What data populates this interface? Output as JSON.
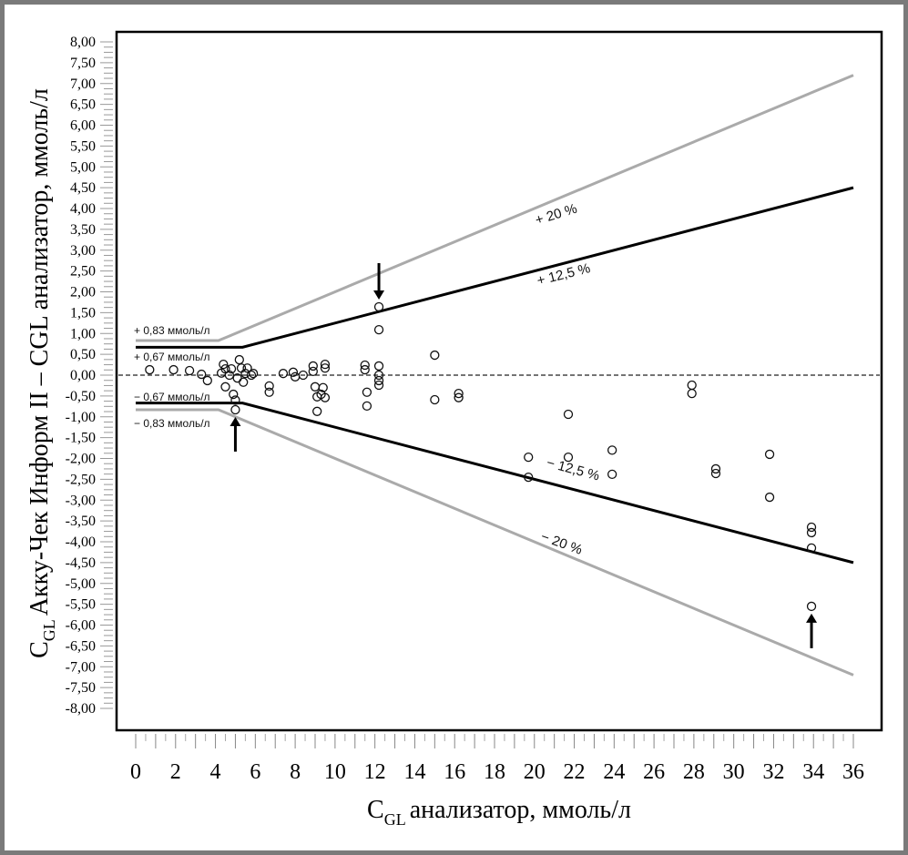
{
  "chart_data": {
    "type": "scatter",
    "title": "",
    "xlabel": "анализатор, ммоль/л",
    "xlabel_prefix": "C",
    "xlabel_sub": "GL",
    "ylabel": "Акку-Чек Информ II – CGL анализатор, ммоль/л",
    "ylabel_prefix": "C",
    "ylabel_sub": "GL",
    "xlim": [
      0,
      36
    ],
    "ylim": [
      -8,
      8
    ],
    "x_ticks": [
      "0",
      "2",
      "4",
      "6",
      "8",
      "10",
      "12",
      "14",
      "16",
      "18",
      "20",
      "22",
      "24",
      "26",
      "28",
      "30",
      "32",
      "34",
      "36"
    ],
    "y_ticks": [
      "8,00",
      "7,50",
      "7,00",
      "6,50",
      "6,00",
      "5,50",
      "5,00",
      "4,50",
      "4,00",
      "3,50",
      "3,00",
      "2,50",
      "2,00",
      "1,50",
      "1,00",
      "0,50",
      "0,00",
      "-0,50",
      "-1,00",
      "-1,50",
      "-2,00",
      "-2,50",
      "-3,00",
      "-3,50",
      "-4,00",
      "-4,50",
      "-5,00",
      "-5,50",
      "-6,00",
      "-6,50",
      "-7,00",
      "-7,50",
      "-8,00"
    ],
    "reference_line": {
      "y": 0,
      "style": "dashed"
    },
    "limits": [
      {
        "name": "+12,5 %",
        "abs": 0.67,
        "pct": 12.5,
        "sign": 1,
        "color": "#000000",
        "abs_label": "+ 0,67 ммоль/л",
        "pct_label": "+ 12,5 %"
      },
      {
        "name": "-12,5 %",
        "abs": 0.67,
        "pct": 12.5,
        "sign": -1,
        "color": "#000000",
        "abs_label": "− 0,67 ммоль/л",
        "pct_label": "− 12,5 %"
      },
      {
        "name": "+20 %",
        "abs": 0.83,
        "pct": 20,
        "sign": 1,
        "color": "#aaaaaa",
        "abs_label": "+ 0,83 ммоль/л",
        "pct_label": "+ 20 %"
      },
      {
        "name": "-20 %",
        "abs": 0.83,
        "pct": 20,
        "sign": -1,
        "color": "#aaaaaa",
        "abs_label": "− 0,83 ммоль/л",
        "pct_label": "− 20 %"
      }
    ],
    "points": [
      [
        0.7,
        0.13
      ],
      [
        1.9,
        0.13
      ],
      [
        2.7,
        0.11
      ],
      [
        3.3,
        0.02
      ],
      [
        3.6,
        -0.13
      ],
      [
        4.3,
        0.05
      ],
      [
        4.4,
        0.26
      ],
      [
        4.5,
        0.15
      ],
      [
        4.5,
        -0.28
      ],
      [
        4.7,
        0.0
      ],
      [
        4.8,
        0.15
      ],
      [
        4.9,
        -0.46
      ],
      [
        5.0,
        -0.6
      ],
      [
        5.0,
        -0.83
      ],
      [
        5.1,
        -0.07
      ],
      [
        5.2,
        0.37
      ],
      [
        5.3,
        0.17
      ],
      [
        5.4,
        -0.17
      ],
      [
        5.5,
        0.04
      ],
      [
        5.6,
        0.17
      ],
      [
        5.8,
        0.0
      ],
      [
        5.9,
        0.04
      ],
      [
        6.7,
        -0.26
      ],
      [
        6.7,
        -0.41
      ],
      [
        7.4,
        0.04
      ],
      [
        7.9,
        0.07
      ],
      [
        8.0,
        -0.04
      ],
      [
        8.4,
        0.0
      ],
      [
        8.9,
        0.22
      ],
      [
        8.9,
        0.09
      ],
      [
        9.0,
        -0.28
      ],
      [
        9.1,
        -0.52
      ],
      [
        9.1,
        -0.87
      ],
      [
        9.3,
        -0.46
      ],
      [
        9.4,
        -0.3
      ],
      [
        9.5,
        0.26
      ],
      [
        9.5,
        0.17
      ],
      [
        9.5,
        -0.54
      ],
      [
        11.5,
        0.24
      ],
      [
        11.5,
        0.13
      ],
      [
        11.6,
        -0.41
      ],
      [
        11.6,
        -0.74
      ],
      [
        12.2,
        1.64
      ],
      [
        12.2,
        1.09
      ],
      [
        12.2,
        0.22
      ],
      [
        12.2,
        0.0
      ],
      [
        12.2,
        -0.13
      ],
      [
        12.2,
        -0.24
      ],
      [
        15.0,
        0.48
      ],
      [
        15.0,
        -0.59
      ],
      [
        16.2,
        -0.44
      ],
      [
        16.2,
        -0.54
      ],
      [
        19.7,
        -1.97
      ],
      [
        19.7,
        -2.45
      ],
      [
        21.7,
        -0.94
      ],
      [
        21.7,
        -1.97
      ],
      [
        23.9,
        -1.8
      ],
      [
        23.9,
        -2.38
      ],
      [
        27.9,
        -0.24
      ],
      [
        27.9,
        -0.44
      ],
      [
        29.1,
        -2.25
      ],
      [
        29.1,
        -2.36
      ],
      [
        31.8,
        -1.9
      ],
      [
        31.8,
        -2.93
      ],
      [
        33.9,
        -3.65
      ],
      [
        33.9,
        -3.78
      ],
      [
        33.9,
        -4.15
      ],
      [
        33.9,
        -5.55
      ]
    ],
    "arrows": [
      {
        "x": 12.2,
        "y": 1.64,
        "direction": "down"
      },
      {
        "x": 5.0,
        "y": -0.83,
        "direction": "up"
      },
      {
        "x": 33.9,
        "y": -5.55,
        "direction": "up"
      }
    ],
    "grid": false,
    "legend": "none"
  }
}
